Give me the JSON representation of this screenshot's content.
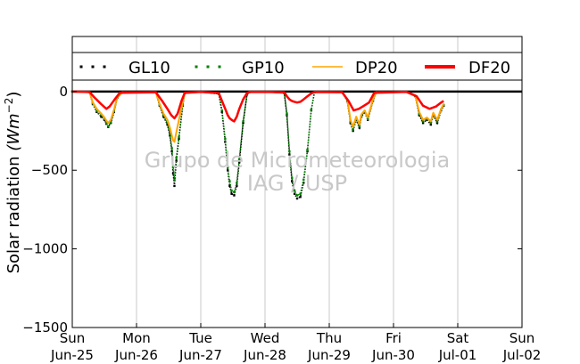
{
  "chart_data": {
    "type": "line",
    "xlabel": "",
    "ylabel_prefix": "Solar radiation ",
    "ylabel_unit": "(Wm",
    "ylabel_exp": "−2",
    "ylabel_close": ")",
    "ylim": [
      -1500,
      350
    ],
    "yticks": [
      0,
      -500,
      -1000,
      -1500
    ],
    "ytick_labels": [
      "0",
      "−500",
      "−1000",
      "−1500"
    ],
    "xlim": [
      0,
      7
    ],
    "xticks": [
      0,
      1,
      2,
      3,
      4,
      5,
      6,
      7
    ],
    "xtick_labels": [
      [
        "Sun",
        "Jun-25"
      ],
      [
        "Mon",
        "Jun-26"
      ],
      [
        "Tue",
        "Jun-27"
      ],
      [
        "Wed",
        "Jun-28"
      ],
      [
        "Thu",
        "Jun-29"
      ],
      [
        "Fri",
        "Jun-30"
      ],
      [
        "Sat",
        "Jul-01"
      ],
      [
        "Sun",
        "Jul-02"
      ]
    ],
    "grid": "vertical",
    "legend_position": "top",
    "watermark": [
      "Grupo de Micrometeorologia",
      "IAG / USP"
    ],
    "series": [
      {
        "name": "GL10",
        "style": "dots",
        "color": "#000000",
        "points": [
          [
            0,
            0
          ],
          [
            0.27,
            -5
          ],
          [
            0.32,
            -80
          ],
          [
            0.38,
            -130
          ],
          [
            0.45,
            -160
          ],
          [
            0.5,
            -180
          ],
          [
            0.53,
            -205
          ],
          [
            0.56,
            -225
          ],
          [
            0.6,
            -200
          ],
          [
            0.65,
            -130
          ],
          [
            0.7,
            -40
          ],
          [
            0.78,
            -5
          ],
          [
            1.3,
            -5
          ],
          [
            1.36,
            -90
          ],
          [
            1.42,
            -160
          ],
          [
            1.48,
            -210
          ],
          [
            1.52,
            -280
          ],
          [
            1.55,
            -380
          ],
          [
            1.57,
            -520
          ],
          [
            1.59,
            -600
          ],
          [
            1.62,
            -440
          ],
          [
            1.66,
            -300
          ],
          [
            1.72,
            -90
          ],
          [
            1.75,
            -10
          ],
          [
            2.0,
            -2
          ],
          [
            2.28,
            -15
          ],
          [
            2.33,
            -130
          ],
          [
            2.38,
            -320
          ],
          [
            2.42,
            -500
          ],
          [
            2.45,
            -600
          ],
          [
            2.48,
            -650
          ],
          [
            2.52,
            -660
          ],
          [
            2.56,
            -600
          ],
          [
            2.6,
            -450
          ],
          [
            2.66,
            -200
          ],
          [
            2.72,
            -20
          ],
          [
            2.76,
            -3
          ],
          [
            3.0,
            -2
          ],
          [
            3.3,
            -10
          ],
          [
            3.34,
            -150
          ],
          [
            3.38,
            -400
          ],
          [
            3.42,
            -570
          ],
          [
            3.46,
            -650
          ],
          [
            3.5,
            -680
          ],
          [
            3.55,
            -670
          ],
          [
            3.6,
            -580
          ],
          [
            3.66,
            -380
          ],
          [
            3.72,
            -120
          ],
          [
            3.77,
            -5
          ],
          [
            4.2,
            -5
          ],
          [
            4.28,
            -60
          ],
          [
            4.33,
            -200
          ],
          [
            4.37,
            -250
          ],
          [
            4.42,
            -180
          ],
          [
            4.47,
            -230
          ],
          [
            4.5,
            -160
          ],
          [
            4.55,
            -130
          ],
          [
            4.6,
            -180
          ],
          [
            4.68,
            -60
          ],
          [
            4.73,
            -5
          ],
          [
            5.2,
            -2
          ],
          [
            5.34,
            -30
          ],
          [
            5.4,
            -150
          ],
          [
            5.46,
            -200
          ],
          [
            5.52,
            -180
          ],
          [
            5.58,
            -210
          ],
          [
            5.62,
            -150
          ],
          [
            5.68,
            -200
          ],
          [
            5.74,
            -120
          ],
          [
            5.78,
            -90
          ]
        ]
      },
      {
        "name": "GP10",
        "style": "dots",
        "color": "#008000",
        "points": [
          [
            0,
            0
          ],
          [
            0.27,
            -5
          ],
          [
            0.32,
            -75
          ],
          [
            0.38,
            -125
          ],
          [
            0.45,
            -150
          ],
          [
            0.5,
            -175
          ],
          [
            0.53,
            -200
          ],
          [
            0.56,
            -220
          ],
          [
            0.6,
            -195
          ],
          [
            0.65,
            -125
          ],
          [
            0.7,
            -40
          ],
          [
            0.78,
            -5
          ],
          [
            1.3,
            -5
          ],
          [
            1.36,
            -85
          ],
          [
            1.42,
            -150
          ],
          [
            1.48,
            -200
          ],
          [
            1.52,
            -270
          ],
          [
            1.55,
            -360
          ],
          [
            1.57,
            -480
          ],
          [
            1.59,
            -560
          ],
          [
            1.62,
            -420
          ],
          [
            1.66,
            -290
          ],
          [
            1.72,
            -85
          ],
          [
            1.75,
            -10
          ],
          [
            2.0,
            -2
          ],
          [
            2.28,
            -15
          ],
          [
            2.33,
            -120
          ],
          [
            2.38,
            -300
          ],
          [
            2.42,
            -480
          ],
          [
            2.45,
            -570
          ],
          [
            2.48,
            -630
          ],
          [
            2.52,
            -640
          ],
          [
            2.56,
            -580
          ],
          [
            2.6,
            -430
          ],
          [
            2.66,
            -190
          ],
          [
            2.72,
            -20
          ],
          [
            2.76,
            -3
          ],
          [
            3.0,
            -2
          ],
          [
            3.3,
            -10
          ],
          [
            3.34,
            -140
          ],
          [
            3.38,
            -380
          ],
          [
            3.42,
            -550
          ],
          [
            3.46,
            -630
          ],
          [
            3.5,
            -660
          ],
          [
            3.55,
            -650
          ],
          [
            3.6,
            -560
          ],
          [
            3.66,
            -370
          ],
          [
            3.72,
            -115
          ],
          [
            3.77,
            -5
          ],
          [
            4.2,
            -5
          ],
          [
            4.28,
            -55
          ],
          [
            4.33,
            -190
          ],
          [
            4.37,
            -240
          ],
          [
            4.42,
            -175
          ],
          [
            4.47,
            -220
          ],
          [
            4.5,
            -155
          ],
          [
            4.55,
            -125
          ],
          [
            4.6,
            -175
          ],
          [
            4.68,
            -55
          ],
          [
            4.73,
            -5
          ],
          [
            5.2,
            -2
          ],
          [
            5.34,
            -28
          ],
          [
            5.4,
            -140
          ],
          [
            5.46,
            -190
          ],
          [
            5.52,
            -175
          ],
          [
            5.58,
            -200
          ],
          [
            5.62,
            -145
          ],
          [
            5.68,
            -190
          ],
          [
            5.74,
            -115
          ],
          [
            5.78,
            -85
          ]
        ]
      },
      {
        "name": "DP20",
        "style": "line",
        "color": "#ffa500",
        "points": [
          [
            0,
            0
          ],
          [
            0.27,
            -5
          ],
          [
            0.32,
            -70
          ],
          [
            0.38,
            -110
          ],
          [
            0.45,
            -140
          ],
          [
            0.5,
            -165
          ],
          [
            0.53,
            -185
          ],
          [
            0.56,
            -200
          ],
          [
            0.6,
            -180
          ],
          [
            0.65,
            -115
          ],
          [
            0.7,
            -35
          ],
          [
            0.78,
            -5
          ],
          [
            1.3,
            -5
          ],
          [
            1.36,
            -80
          ],
          [
            1.42,
            -140
          ],
          [
            1.48,
            -180
          ],
          [
            1.52,
            -230
          ],
          [
            1.55,
            -280
          ],
          [
            1.57,
            -310
          ],
          [
            1.59,
            -320
          ],
          [
            1.62,
            -260
          ],
          [
            1.66,
            -180
          ],
          [
            1.72,
            -70
          ],
          [
            1.75,
            -10
          ],
          [
            2.0,
            -2
          ],
          [
            2.28,
            -10
          ],
          [
            2.33,
            -60
          ],
          [
            2.38,
            -110
          ],
          [
            2.42,
            -150
          ],
          [
            2.45,
            -170
          ],
          [
            2.48,
            -180
          ],
          [
            2.52,
            -190
          ],
          [
            2.56,
            -160
          ],
          [
            2.6,
            -110
          ],
          [
            2.66,
            -50
          ],
          [
            2.72,
            -10
          ],
          [
            2.76,
            -3
          ],
          [
            3.0,
            -2
          ],
          [
            3.3,
            -5
          ],
          [
            3.34,
            -30
          ],
          [
            3.38,
            -50
          ],
          [
            3.42,
            -60
          ],
          [
            3.46,
            -65
          ],
          [
            3.5,
            -70
          ],
          [
            3.55,
            -65
          ],
          [
            3.6,
            -50
          ],
          [
            3.66,
            -30
          ],
          [
            3.72,
            -12
          ],
          [
            3.77,
            -3
          ],
          [
            4.2,
            -5
          ],
          [
            4.28,
            -50
          ],
          [
            4.33,
            -180
          ],
          [
            4.37,
            -225
          ],
          [
            4.42,
            -160
          ],
          [
            4.47,
            -210
          ],
          [
            4.5,
            -145
          ],
          [
            4.55,
            -120
          ],
          [
            4.6,
            -165
          ],
          [
            4.68,
            -50
          ],
          [
            4.73,
            -5
          ],
          [
            5.2,
            -2
          ],
          [
            5.34,
            -25
          ],
          [
            5.4,
            -130
          ],
          [
            5.46,
            -180
          ],
          [
            5.52,
            -165
          ],
          [
            5.58,
            -190
          ],
          [
            5.62,
            -135
          ],
          [
            5.68,
            -180
          ],
          [
            5.74,
            -110
          ],
          [
            5.78,
            -80
          ]
        ]
      },
      {
        "name": "DF20",
        "style": "line",
        "color": "#ff0000",
        "points": [
          [
            0,
            0
          ],
          [
            0.27,
            -3
          ],
          [
            0.35,
            -40
          ],
          [
            0.45,
            -80
          ],
          [
            0.53,
            -110
          ],
          [
            0.58,
            -95
          ],
          [
            0.66,
            -50
          ],
          [
            0.74,
            -8
          ],
          [
            1.3,
            -4
          ],
          [
            1.4,
            -60
          ],
          [
            1.48,
            -110
          ],
          [
            1.54,
            -150
          ],
          [
            1.59,
            -170
          ],
          [
            1.64,
            -140
          ],
          [
            1.7,
            -60
          ],
          [
            1.75,
            -8
          ],
          [
            2.0,
            -2
          ],
          [
            2.28,
            -10
          ],
          [
            2.33,
            -60
          ],
          [
            2.38,
            -110
          ],
          [
            2.42,
            -150
          ],
          [
            2.45,
            -170
          ],
          [
            2.48,
            -180
          ],
          [
            2.52,
            -190
          ],
          [
            2.56,
            -160
          ],
          [
            2.6,
            -110
          ],
          [
            2.66,
            -50
          ],
          [
            2.72,
            -10
          ],
          [
            2.76,
            -3
          ],
          [
            3.0,
            -2
          ],
          [
            3.3,
            -5
          ],
          [
            3.34,
            -30
          ],
          [
            3.38,
            -50
          ],
          [
            3.42,
            -60
          ],
          [
            3.46,
            -65
          ],
          [
            3.5,
            -70
          ],
          [
            3.55,
            -65
          ],
          [
            3.6,
            -50
          ],
          [
            3.66,
            -30
          ],
          [
            3.72,
            -12
          ],
          [
            3.77,
            -3
          ],
          [
            4.2,
            -4
          ],
          [
            4.3,
            -60
          ],
          [
            4.38,
            -120
          ],
          [
            4.46,
            -110
          ],
          [
            4.54,
            -90
          ],
          [
            4.62,
            -70
          ],
          [
            4.7,
            -8
          ],
          [
            5.2,
            -2
          ],
          [
            5.36,
            -30
          ],
          [
            5.46,
            -90
          ],
          [
            5.56,
            -110
          ],
          [
            5.66,
            -95
          ],
          [
            5.74,
            -70
          ],
          [
            5.78,
            -60
          ]
        ]
      }
    ]
  }
}
